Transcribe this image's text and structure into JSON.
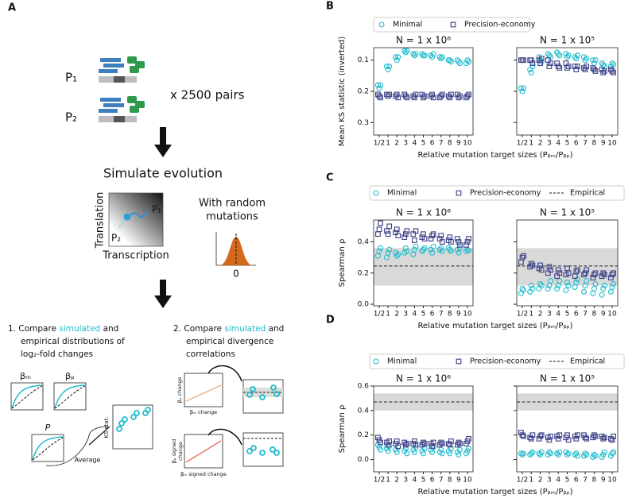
{
  "panel_a": {
    "label": "A",
    "p1": "P₁",
    "p2": "P₂",
    "pairs": "x  2500 pairs",
    "simulate": "Simulate evolution",
    "y_axis": "Translation",
    "x_axis": "Transcription",
    "landscape_p1": "P₁",
    "landscape_p2": "P₂",
    "mutations_1": "With random",
    "mutations_2": "mutations",
    "zero": "0",
    "step1": {
      "number": "1.",
      "a": "Compare",
      "highlight": "simulated",
      "b": "and",
      "line2": "empirical distributions of",
      "line3": "log₂-fold changes",
      "beta_m": "βₘ",
      "beta_p": "βₚ",
      "p": "P",
      "ks": "KS stat.",
      "average": "Average"
    },
    "step2": {
      "number": "2.",
      "a": "Compare",
      "highlight": "simulated",
      "b": "and",
      "line2": "empirical divergence",
      "line3": "correlations",
      "bp_change": "βₚ change",
      "bm_change": "βₘ change",
      "bp_signed_1": "βₚ signed",
      "bp_signed_2": "change",
      "bm_signed": "βₘ signed change"
    }
  },
  "chart_data": [
    {
      "type": "scatter",
      "label": "B",
      "ylabel": "Mean KS statistic (inverted)",
      "xlabel": "Relative mutation target sizes (Pᵦₘ/Pᵦₚ)",
      "categories": [
        "1/2",
        "1",
        "2",
        "3",
        "4",
        "5",
        "6",
        "7",
        "8",
        "9",
        "10"
      ],
      "series": [
        {
          "name": "Minimal",
          "color": "#1fbccd",
          "marker": "circle"
        },
        {
          "name": "Precision-economy",
          "color": "#3b3f87",
          "marker": "square"
        }
      ],
      "ylim": [
        0.34,
        0.06
      ],
      "yticks": [
        0.1,
        0.2,
        0.3
      ],
      "subplots": [
        {
          "title": "N = 1 x 10⁶",
          "series": [
            {
              "values": [
                [
                  0.18,
                  0.19,
                  0.18
                ],
                [
                  0.12,
                  0.13,
                  0.12
                ],
                [
                  0.09,
                  0.1,
                  0.09
                ],
                [
                  0.07,
                  0.075,
                  0.07
                ],
                [
                  0.08,
                  0.085,
                  0.08
                ],
                [
                  0.08,
                  0.085,
                  0.085
                ],
                [
                  0.085,
                  0.09,
                  0.08
                ],
                [
                  0.09,
                  0.095,
                  0.09
                ],
                [
                  0.1,
                  0.1,
                  0.105
                ],
                [
                  0.1,
                  0.105,
                  0.11
                ],
                [
                  0.11,
                  0.1,
                  0.105
                ]
              ]
            },
            {
              "values": [
                [
                  0.21,
                  0.215,
                  0.22
                ],
                [
                  0.21,
                  0.215,
                  0.21
                ],
                [
                  0.215,
                  0.21,
                  0.22
                ],
                [
                  0.21,
                  0.215,
                  0.22
                ],
                [
                  0.215,
                  0.22,
                  0.21
                ],
                [
                  0.21,
                  0.22,
                  0.215
                ],
                [
                  0.215,
                  0.21,
                  0.22
                ],
                [
                  0.22,
                  0.215,
                  0.21
                ],
                [
                  0.215,
                  0.22,
                  0.21
                ],
                [
                  0.21,
                  0.22,
                  0.215
                ],
                [
                  0.22,
                  0.215,
                  0.21
                ]
              ]
            }
          ]
        },
        {
          "title": "N = 1 x 10⁵",
          "series": [
            {
              "values": [
                [
                  0.19,
                  0.2,
                  0.19
                ],
                [
                  0.13,
                  0.14,
                  0.12
                ],
                [
                  0.09,
                  0.1,
                  0.105
                ],
                [
                  0.08,
                  0.085,
                  0.09
                ],
                [
                  0.075,
                  0.08,
                  0.085
                ],
                [
                  0.08,
                  0.09,
                  0.085
                ],
                [
                  0.09,
                  0.095,
                  0.085
                ],
                [
                  0.09,
                  0.1,
                  0.095
                ],
                [
                  0.1,
                  0.11,
                  0.1
                ],
                [
                  0.11,
                  0.115,
                  0.12
                ],
                [
                  0.12,
                  0.11,
                  0.115
                ]
              ]
            },
            {
              "values": [
                [
                  0.1,
                  0.1,
                  0.1
                ],
                [
                  0.1,
                  0.1,
                  0.11
                ],
                [
                  0.1,
                  0.11,
                  0.095
                ],
                [
                  0.1,
                  0.12,
                  0.11
                ],
                [
                  0.11,
                  0.12,
                  0.125
                ],
                [
                  0.11,
                  0.125,
                  0.12
                ],
                [
                  0.12,
                  0.13,
                  0.12
                ],
                [
                  0.125,
                  0.13,
                  0.12
                ],
                [
                  0.125,
                  0.13,
                  0.135
                ],
                [
                  0.13,
                  0.14,
                  0.135
                ],
                [
                  0.13,
                  0.135,
                  0.14
                ]
              ]
            }
          ]
        }
      ]
    },
    {
      "type": "scatter",
      "label": "C",
      "ylabel": "Spearman ρ",
      "xlabel": "Relative mutation target sizes (Pᵦₘ/Pᵦₚ)",
      "categories": [
        "1/2",
        "1",
        "2",
        "3",
        "4",
        "5",
        "6",
        "7",
        "8",
        "9",
        "10"
      ],
      "series": [
        {
          "name": "Minimal",
          "color": "#1fbccd",
          "marker": "circle"
        },
        {
          "name": "Precision-economy",
          "color": "#3b3f87",
          "marker": "square"
        }
      ],
      "empirical": {
        "name": "Empirical",
        "value": 0.245,
        "band": [
          0.12,
          0.36
        ]
      },
      "ylim": [
        -0.01,
        0.54
      ],
      "yticks": [
        {
          "value": 0,
          "label": "0.0"
        },
        0.2,
        0.4
      ],
      "subplots": [
        {
          "title": "N = 1 x 10⁶",
          "series": [
            {
              "values": [
                [
                  0.31,
                  0.34,
                  0.36
                ],
                [
                  0.3,
                  0.33,
                  0.35
                ],
                [
                  0.33,
                  0.31,
                  0.32
                ],
                [
                  0.33,
                  0.36,
                  0.34
                ],
                [
                  0.32,
                  0.35,
                  0.37
                ],
                [
                  0.34,
                  0.35,
                  0.36
                ],
                [
                  0.35,
                  0.33,
                  0.37
                ],
                [
                  0.35,
                  0.36,
                  0.34
                ],
                [
                  0.36,
                  0.35,
                  0.34
                ],
                [
                  0.35,
                  0.33,
                  0.36
                ],
                [
                  0.34,
                  0.35,
                  0.345
                ]
              ]
            },
            {
              "values": [
                [
                  0.45,
                  0.48,
                  0.52
                ],
                [
                  0.47,
                  0.45,
                  0.5
                ],
                [
                  0.46,
                  0.48,
                  0.44
                ],
                [
                  0.43,
                  0.45,
                  0.47
                ],
                [
                  0.45,
                  0.41,
                  0.47
                ],
                [
                  0.43,
                  0.45,
                  0.42
                ],
                [
                  0.42,
                  0.44,
                  0.45
                ],
                [
                  0.42,
                  0.44,
                  0.4
                ],
                [
                  0.41,
                  0.43,
                  0.4
                ],
                [
                  0.42,
                  0.4,
                  0.38
                ],
                [
                  0.38,
                  0.4,
                  0.42
                ]
              ]
            }
          ]
        },
        {
          "title": "N = 1 x 10⁵",
          "series": [
            {
              "values": [
                [
                  0.07,
                  0.1,
                  0.09
                ],
                [
                  0.08,
                  0.12,
                  0.1
                ],
                [
                  0.1,
                  0.13,
                  0.12
                ],
                [
                  0.1,
                  0.12,
                  0.15
                ],
                [
                  0.1,
                  0.12,
                  0.15
                ],
                [
                  0.09,
                  0.14,
                  0.12
                ],
                [
                  0.11,
                  0.14,
                  0.16
                ],
                [
                  0.08,
                  0.12,
                  0.15
                ],
                [
                  0.07,
                  0.1,
                  0.13
                ],
                [
                  0.06,
                  0.1,
                  0.12
                ],
                [
                  0.08,
                  0.11,
                  0.13
                ]
              ]
            },
            {
              "values": [
                [
                  0.27,
                  0.3,
                  0.31
                ],
                [
                  0.24,
                  0.26,
                  0.25
                ],
                [
                  0.23,
                  0.25,
                  0.22
                ],
                [
                  0.2,
                  0.24,
                  0.22
                ],
                [
                  0.18,
                  0.22,
                  0.2
                ],
                [
                  0.19,
                  0.23,
                  0.2
                ],
                [
                  0.18,
                  0.21,
                  0.22
                ],
                [
                  0.19,
                  0.2,
                  0.22
                ],
                [
                  0.17,
                  0.19,
                  0.2
                ],
                [
                  0.18,
                  0.2,
                  0.19
                ],
                [
                  0.17,
                  0.19,
                  0.2
                ]
              ]
            }
          ]
        }
      ]
    },
    {
      "type": "scatter",
      "label": "D",
      "ylabel": "Spearman ρ",
      "xlabel": "Relative mutation target sizes (Pᵦₘ/Pᵦₚ)",
      "categories": [
        "1/2",
        "1",
        "2",
        "3",
        "4",
        "5",
        "6",
        "7",
        "8",
        "9",
        "10"
      ],
      "series": [
        {
          "name": "Minimal",
          "color": "#1fbccd",
          "marker": "circle"
        },
        {
          "name": "Precision-economy",
          "color": "#3b3f87",
          "marker": "square"
        }
      ],
      "empirical": {
        "name": "Empirical",
        "value": 0.47,
        "band": [
          0.4,
          0.54
        ]
      },
      "ylim": [
        -0.1,
        0.6
      ],
      "yticks": [
        {
          "value": 0,
          "label": "0.0"
        },
        0.2,
        0.4,
        0.6
      ],
      "subplots": [
        {
          "title": "N = 1 x 10⁶",
          "series": [
            {
              "values": [
                [
                  0.12,
                  0.1,
                  0.08
                ],
                [
                  0.09,
                  0.07,
                  0.11
                ],
                [
                  0.08,
                  0.06,
                  0.1
                ],
                [
                  0.07,
                  0.09,
                  0.05
                ],
                [
                  0.08,
                  0.06,
                  0.1
                ],
                [
                  0.07,
                  0.05,
                  0.09
                ],
                [
                  0.08,
                  0.06,
                  0.1
                ],
                [
                  0.06,
                  0.08,
                  0.05
                ],
                [
                  0.07,
                  0.05,
                  0.09
                ],
                [
                  0.06,
                  0.04,
                  0.08
                ],
                [
                  0.05,
                  0.07,
                  0.09
                ]
              ]
            },
            {
              "values": [
                [
                  0.18,
                  0.16,
                  0.14
                ],
                [
                  0.14,
                  0.12,
                  0.15
                ],
                [
                  0.13,
                  0.15,
                  0.11
                ],
                [
                  0.14,
                  0.12,
                  0.13
                ],
                [
                  0.13,
                  0.15,
                  0.12
                ],
                [
                  0.12,
                  0.14,
                  0.13
                ],
                [
                  0.13,
                  0.11,
                  0.14
                ],
                [
                  0.12,
                  0.14,
                  0.13
                ],
                [
                  0.13,
                  0.12,
                  0.15
                ],
                [
                  0.12,
                  0.14,
                  0.13
                ],
                [
                  0.13,
                  0.15,
                  0.17
                ]
              ]
            }
          ]
        },
        {
          "title": "N = 1 x 10⁵",
          "series": [
            {
              "values": [
                [
                  0.05,
                  0.04,
                  0.05
                ],
                [
                  0.04,
                  0.05,
                  0.06
                ],
                [
                  0.05,
                  0.04,
                  0.06
                ],
                [
                  0.04,
                  0.06,
                  0.05
                ],
                [
                  0.05,
                  0.04,
                  0.06
                ],
                [
                  0.06,
                  0.04,
                  0.05
                ],
                [
                  0.04,
                  0.05,
                  0.03
                ],
                [
                  0.03,
                  0.05,
                  0.04
                ],
                [
                  0.02,
                  0.04,
                  0.03
                ],
                [
                  0.02,
                  0.04,
                  0.06
                ],
                [
                  0.03,
                  0.05,
                  0.06
                ]
              ]
            },
            {
              "values": [
                [
                  0.22,
                  0.2,
                  0.19
                ],
                [
                  0.18,
                  0.17,
                  0.2
                ],
                [
                  0.17,
                  0.19,
                  0.2
                ],
                [
                  0.18,
                  0.16,
                  0.19
                ],
                [
                  0.19,
                  0.17,
                  0.2
                ],
                [
                  0.18,
                  0.2,
                  0.16
                ],
                [
                  0.19,
                  0.17,
                  0.2
                ],
                [
                  0.2,
                  0.18,
                  0.17
                ],
                [
                  0.18,
                  0.2,
                  0.19
                ],
                [
                  0.19,
                  0.17,
                  0.18
                ],
                [
                  0.17,
                  0.16,
                  0.19
                ]
              ]
            }
          ]
        }
      ]
    }
  ]
}
